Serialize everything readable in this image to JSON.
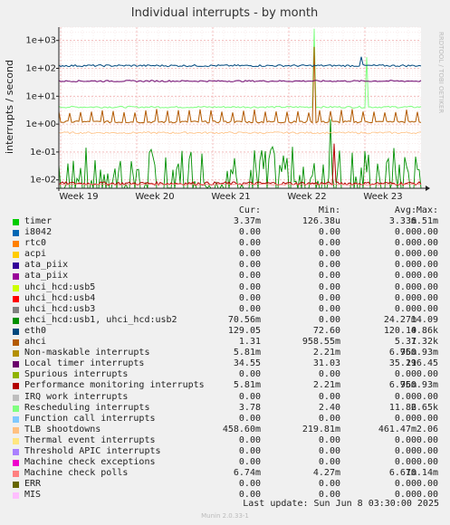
{
  "chart_data": {
    "type": "line",
    "title": "Individual interrupts - by month",
    "ylabel": "interrupts / second",
    "yscale": "log",
    "ylim": [
      0.005,
      3000
    ],
    "y_ticks": [
      {
        "value": 1000,
        "label": "1e+03"
      },
      {
        "value": 100,
        "label": "1e+02"
      },
      {
        "value": 10,
        "label": "1e+01"
      },
      {
        "value": 1,
        "label": "1e+00"
      },
      {
        "value": 0.1,
        "label": "1e-01"
      },
      {
        "value": 0.01,
        "label": "1e-02"
      }
    ],
    "x_ticks": [
      "Week 19",
      "Week 20",
      "Week 21",
      "Week 22",
      "Week 23"
    ],
    "grid": true,
    "watermark": "RRDTOOL / TOBI OETIKER",
    "columns": [
      "Cur:",
      "Min:",
      "Avg:",
      "Max:"
    ],
    "series": [
      {
        "name": "timer",
        "color": "#00cc00",
        "cur": "3.37m",
        "min": "126.38u",
        "avg": "3.33m",
        "max": "6.51m"
      },
      {
        "name": "i8042",
        "color": "#0066b3",
        "cur": "0.00",
        "min": "0.00",
        "avg": "0.00",
        "max": "0.00"
      },
      {
        "name": "rtc0",
        "color": "#ff8000",
        "cur": "0.00",
        "min": "0.00",
        "avg": "0.00",
        "max": "0.00"
      },
      {
        "name": "acpi",
        "color": "#ffcc00",
        "cur": "0.00",
        "min": "0.00",
        "avg": "0.00",
        "max": "0.00"
      },
      {
        "name": "ata_piix",
        "color": "#330099",
        "cur": "0.00",
        "min": "0.00",
        "avg": "0.00",
        "max": "0.00"
      },
      {
        "name": "ata_piix",
        "color": "#990099",
        "cur": "0.00",
        "min": "0.00",
        "avg": "0.00",
        "max": "0.00"
      },
      {
        "name": "uhci_hcd:usb5",
        "color": "#ccff00",
        "cur": "0.00",
        "min": "0.00",
        "avg": "0.00",
        "max": "0.00"
      },
      {
        "name": "uhci_hcd:usb4",
        "color": "#ff0000",
        "cur": "0.00",
        "min": "0.00",
        "avg": "0.00",
        "max": "0.00"
      },
      {
        "name": "uhci_hcd:usb3",
        "color": "#808080",
        "cur": "0.00",
        "min": "0.00",
        "avg": "0.00",
        "max": "0.00"
      },
      {
        "name": "ehci_hcd:usb1, uhci_hcd:usb2",
        "color": "#008f00",
        "cur": "70.56m",
        "min": "0.00",
        "avg": "24.27m",
        "max": "14.09"
      },
      {
        "name": "eth0",
        "color": "#00487d",
        "cur": "129.05",
        "min": "72.60",
        "avg": "120.10",
        "max": "4.86k"
      },
      {
        "name": "ahci",
        "color": "#b35a00",
        "cur": "1.31",
        "min": "958.55m",
        "avg": "5.37",
        "max": "1.32k"
      },
      {
        "name": "Non-maskable interrupts",
        "color": "#b38f00",
        "cur": "5.81m",
        "min": "2.21m",
        "avg": "6.96m",
        "max": "750.93m"
      },
      {
        "name": "Local timer interrupts",
        "color": "#6b006b",
        "cur": "34.55",
        "min": "31.03",
        "avg": "35.21",
        "max": "196.45"
      },
      {
        "name": "Spurious interrupts",
        "color": "#8fb300",
        "cur": "0.00",
        "min": "0.00",
        "avg": "0.00",
        "max": "0.00"
      },
      {
        "name": "Performance monitoring interrupts",
        "color": "#b30000",
        "cur": "5.81m",
        "min": "2.21m",
        "avg": "6.96m",
        "max": "750.93m"
      },
      {
        "name": "IRQ work interrupts",
        "color": "#bebebe",
        "cur": "0.00",
        "min": "0.00",
        "avg": "0.00",
        "max": "0.00"
      },
      {
        "name": "Rescheduling interrupts",
        "color": "#80ff80",
        "cur": "3.78",
        "min": "2.40",
        "avg": "11.86",
        "max": "2.65k"
      },
      {
        "name": "Function call interrupts",
        "color": "#80c9ff",
        "cur": "0.00",
        "min": "0.00",
        "avg": "0.00",
        "max": "0.00"
      },
      {
        "name": "TLB shootdowns",
        "color": "#ffc080",
        "cur": "458.60m",
        "min": "219.81m",
        "avg": "461.47m",
        "max": "2.06"
      },
      {
        "name": "Thermal event interrupts",
        "color": "#ffe680",
        "cur": "0.00",
        "min": "0.00",
        "avg": "0.00",
        "max": "0.00"
      },
      {
        "name": "Threshold APIC interrupts",
        "color": "#aa80ff",
        "cur": "0.00",
        "min": "0.00",
        "avg": "0.00",
        "max": "0.00"
      },
      {
        "name": "Machine check exceptions",
        "color": "#ee00cc",
        "cur": "0.00",
        "min": "0.00",
        "avg": "0.00",
        "max": "0.00"
      },
      {
        "name": "Machine check polls",
        "color": "#ff8080",
        "cur": "6.74m",
        "min": "4.27m",
        "avg": "6.67m",
        "max": "10.14m"
      },
      {
        "name": "ERR",
        "color": "#666600",
        "cur": "0.00",
        "min": "0.00",
        "avg": "0.00",
        "max": "0.00"
      },
      {
        "name": "MIS",
        "color": "#ffbfff",
        "cur": "0.00",
        "min": "0.00",
        "avg": "0.00",
        "max": "0.00"
      }
    ]
  },
  "footer": {
    "last_update": "Last update:  Sun Jun  8 03:30:00 2025",
    "version": "Munin 2.0.33-1"
  }
}
